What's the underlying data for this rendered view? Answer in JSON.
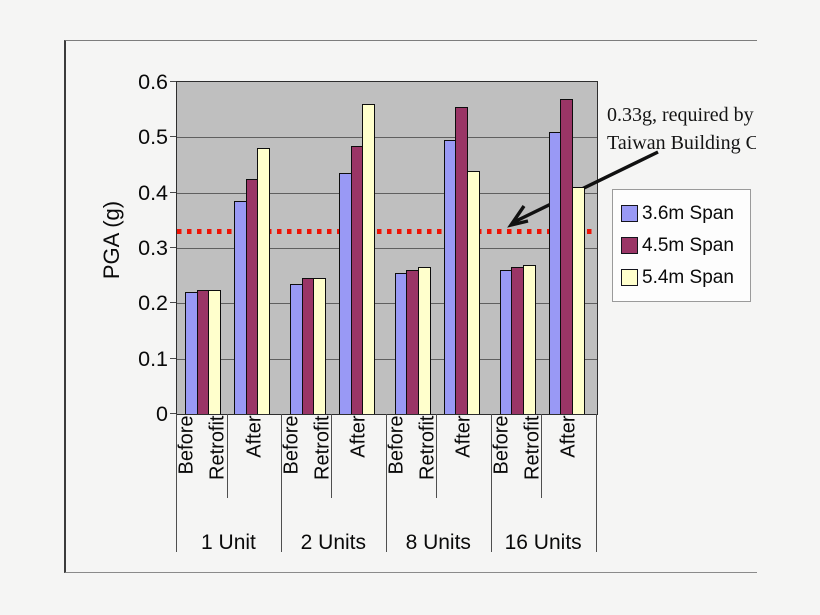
{
  "chart_data": {
    "type": "bar",
    "title": "",
    "ylabel": "PGA (g)",
    "ylim": [
      0,
      0.6
    ],
    "yticks": [
      0,
      0.1,
      0.2,
      0.3,
      0.4,
      0.5,
      0.6
    ],
    "grid": true,
    "plot_bg": "#bfbfbf",
    "legend_position": "right",
    "groups": [
      "1 Unit",
      "2 Units",
      "8 Units",
      "16 Units"
    ],
    "subcategories": [
      "Before Retrofit",
      "After"
    ],
    "series": [
      {
        "name": "3.6m Span",
        "color": "#9999f5",
        "before_retrofit": [
          0.22,
          0.235,
          0.255,
          0.26
        ],
        "after": [
          0.385,
          0.435,
          0.495,
          0.51
        ]
      },
      {
        "name": "4.5m Span",
        "color": "#9a3566",
        "before_retrofit": [
          0.225,
          0.245,
          0.26,
          0.265
        ],
        "after": [
          0.425,
          0.485,
          0.555,
          0.57
        ]
      },
      {
        "name": "5.4m Span",
        "color": "#ffffcc",
        "before_retrofit": [
          0.225,
          0.245,
          0.265,
          0.27
        ],
        "after": [
          0.48,
          0.56,
          0.44,
          0.41
        ]
      }
    ],
    "reference_line": {
      "value": 0.33,
      "color": "#ee1305",
      "style": "dotted"
    }
  },
  "annotation": {
    "line1": "0.33g, required by",
    "line2": "Taiwan Building C"
  }
}
